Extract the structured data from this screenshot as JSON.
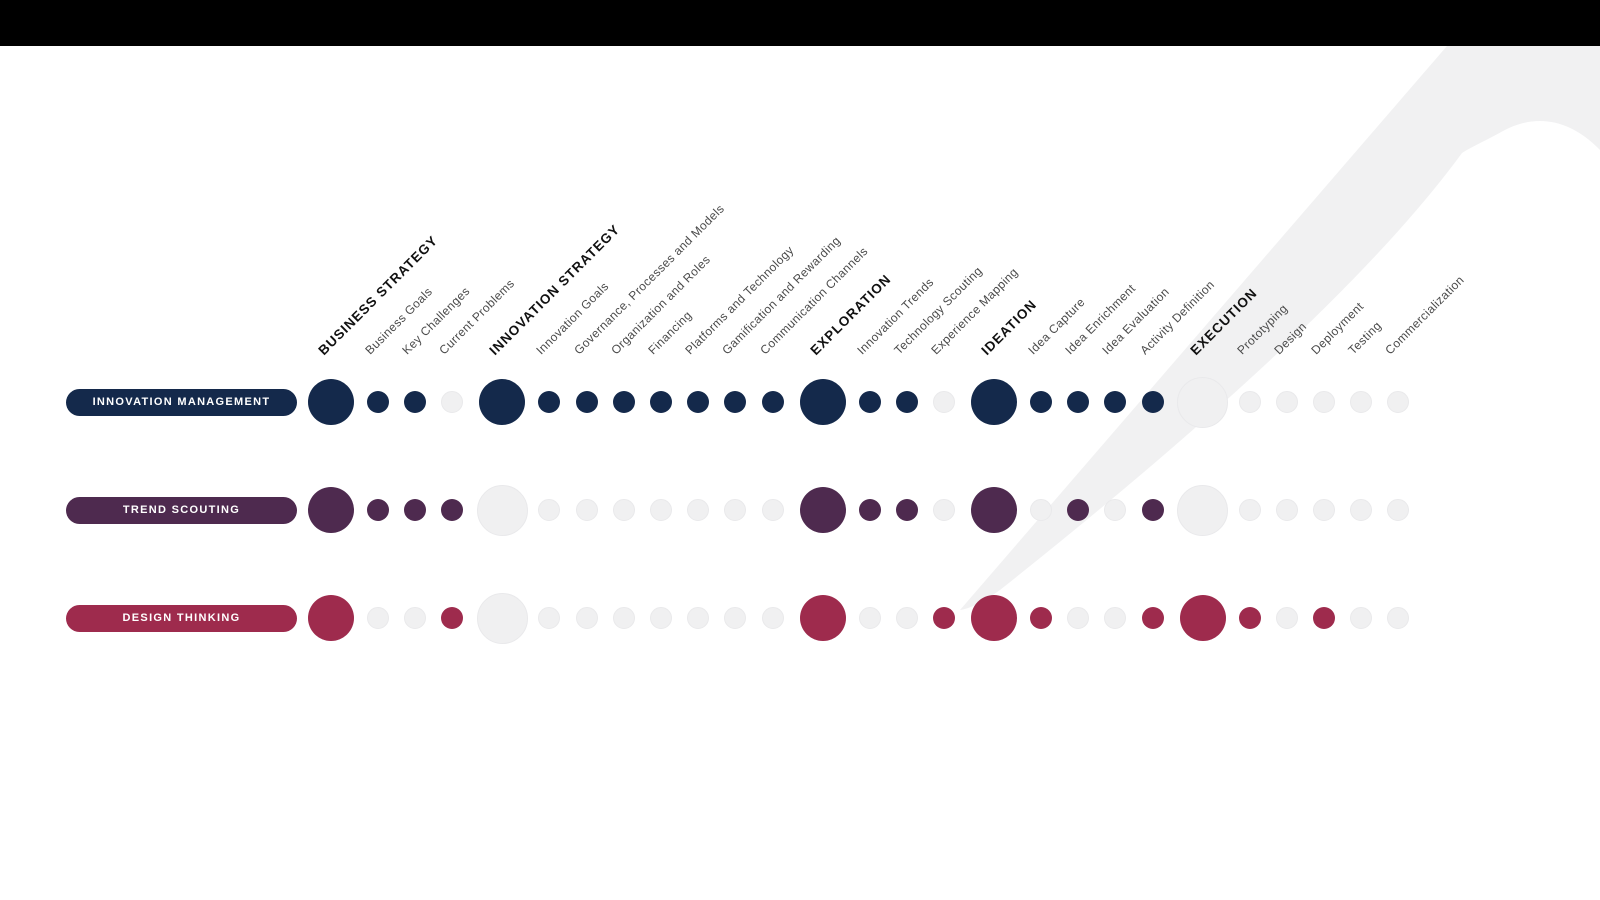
{
  "colors": {
    "topbar": "#000000",
    "swoosh": "#f1f1f2",
    "inactive_dot": "#f0f0f1",
    "inactive_dot_border": "#e9e9eb",
    "navy": "#14294b",
    "purple": "#4e2a4f",
    "crimson": "#9e2b4d",
    "column_label": "#4a4a4a",
    "category_label": "#111111",
    "pill_text": "#ffffff"
  },
  "chart_data": {
    "type": "heatmap",
    "title": "",
    "legend_position": "left-row-pills",
    "columns": [
      {
        "label": "BUSINESS STRATEGY",
        "category": true
      },
      {
        "label": "Business Goals",
        "category": false
      },
      {
        "label": "Key Challenges",
        "category": false
      },
      {
        "label": "Current Problems",
        "category": false
      },
      {
        "label": "INNOVATION STRATEGY",
        "category": true
      },
      {
        "label": "Innovation Goals",
        "category": false
      },
      {
        "label": "Governance, Processes and Models",
        "category": false
      },
      {
        "label": "Organization and Roles",
        "category": false
      },
      {
        "label": "Financing",
        "category": false
      },
      {
        "label": "Platforms and Technology",
        "category": false
      },
      {
        "label": "Gamification and Rewarding",
        "category": false
      },
      {
        "label": "Communication Channels",
        "category": false
      },
      {
        "label": "EXPLORATION",
        "category": true
      },
      {
        "label": "Innovation Trends",
        "category": false
      },
      {
        "label": "Technology Scouting",
        "category": false
      },
      {
        "label": "Experience Mapping",
        "category": false
      },
      {
        "label": "IDEATION",
        "category": true
      },
      {
        "label": "Idea Capture",
        "category": false
      },
      {
        "label": "Idea Enrichment",
        "category": false
      },
      {
        "label": "Idea Evaluation",
        "category": false
      },
      {
        "label": "Activity Definition",
        "category": false
      },
      {
        "label": "EXECUTION",
        "category": true
      },
      {
        "label": "Prototyping",
        "category": false
      },
      {
        "label": "Design",
        "category": false
      },
      {
        "label": "Deployment",
        "category": false
      },
      {
        "label": "Testing",
        "category": false
      },
      {
        "label": "Commercialization",
        "category": false
      }
    ],
    "rows": [
      {
        "label": "INNOVATION MANAGEMENT",
        "color": "#14294b",
        "values": [
          1,
          1,
          1,
          0,
          1,
          1,
          1,
          1,
          1,
          1,
          1,
          1,
          1,
          1,
          1,
          0,
          1,
          1,
          1,
          1,
          1,
          0,
          0,
          0,
          0,
          0,
          0
        ]
      },
      {
        "label": "TREND SCOUTING",
        "color": "#4e2a4f",
        "values": [
          1,
          1,
          1,
          1,
          0,
          0,
          0,
          0,
          0,
          0,
          0,
          0,
          1,
          1,
          1,
          0,
          1,
          0,
          1,
          0,
          1,
          0,
          0,
          0,
          0,
          0,
          0
        ]
      },
      {
        "label": "DESIGN THINKING",
        "color": "#9e2b4d",
        "values": [
          1,
          0,
          0,
          1,
          0,
          0,
          0,
          0,
          0,
          0,
          0,
          0,
          1,
          0,
          0,
          1,
          1,
          1,
          0,
          0,
          1,
          1,
          1,
          0,
          1,
          0,
          0
        ]
      }
    ]
  }
}
